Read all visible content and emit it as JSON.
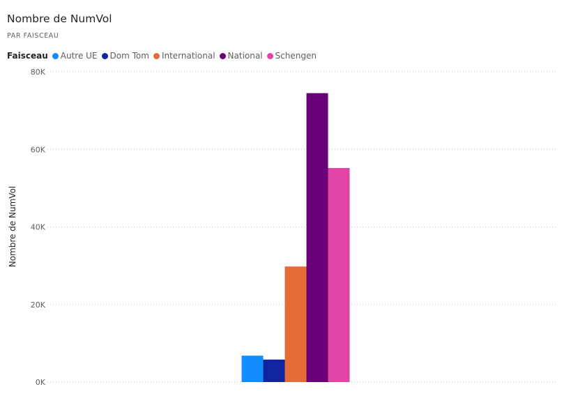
{
  "title": "Nombre de NumVol",
  "subtitle": "PAR FAISCEAU",
  "legend": {
    "title": "Faisceau",
    "items": [
      {
        "label": "Autre UE",
        "color": "#118DFF"
      },
      {
        "label": "Dom Tom",
        "color": "#12239E"
      },
      {
        "label": "International",
        "color": "#E66C37"
      },
      {
        "label": "National",
        "color": "#6B007B"
      },
      {
        "label": "Schengen",
        "color": "#E044A7"
      }
    ]
  },
  "chart_data": {
    "type": "bar",
    "title": "Nombre de NumVol",
    "subtitle": "PAR FAISCEAU",
    "xlabel": "",
    "ylabel": "Nombre de NumVol",
    "ylim": [
      0,
      80000
    ],
    "yticks": [
      0,
      20000,
      40000,
      60000,
      80000
    ],
    "ytick_labels": [
      "0K",
      "20K",
      "40K",
      "60K",
      "80K"
    ],
    "grid": true,
    "legend_position": "top-left",
    "categories": [
      ""
    ],
    "series": [
      {
        "name": "Autre UE",
        "color": "#118DFF",
        "values": [
          6800
        ]
      },
      {
        "name": "Dom Tom",
        "color": "#12239E",
        "values": [
          5800
        ]
      },
      {
        "name": "International",
        "color": "#E66C37",
        "values": [
          29800
        ]
      },
      {
        "name": "National",
        "color": "#6B007B",
        "values": [
          74500
        ]
      },
      {
        "name": "Schengen",
        "color": "#E044A7",
        "values": [
          55200
        ]
      }
    ]
  }
}
